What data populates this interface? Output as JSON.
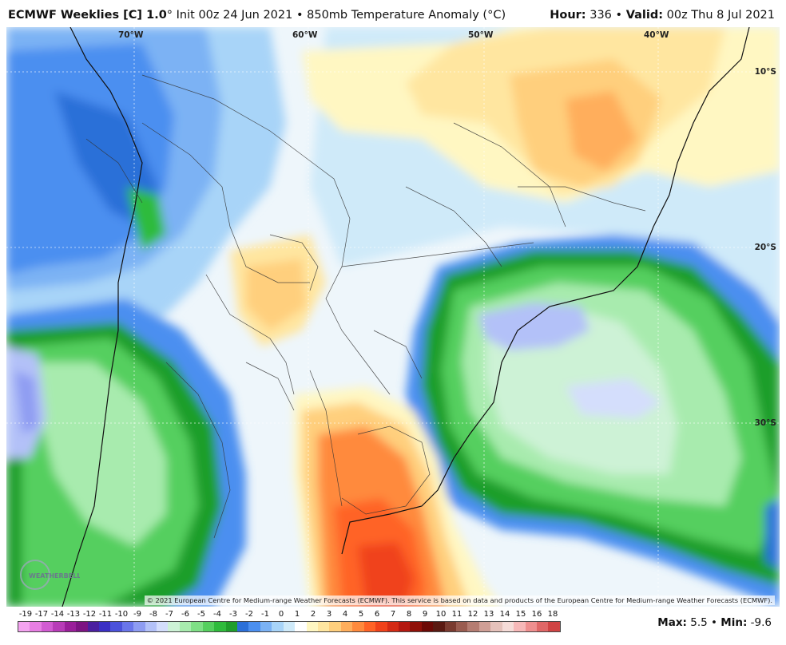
{
  "header": {
    "model": "ECMWF Weeklies [C] 1.0",
    "degree_sign": "°",
    "init_text": "Init 00z 24 Jun 2021",
    "bullet": "•",
    "product": "850mb Temperature Anomaly (°C)",
    "hour_label": "Hour:",
    "hour_value": "336",
    "valid_label": "Valid:",
    "valid_value": "00z Thu 8 Jul 2021"
  },
  "map": {
    "lon_labels": [
      "70°W",
      "60°W",
      "50°W",
      "40°W"
    ],
    "lat_labels": [
      "10°S",
      "20°S",
      "30°S"
    ],
    "copyright": "© 2021 European Centre for Medium-range Weather Forecasts (ECMWF). This service is based on data and products of the European Centre for Medium-range Weather Forecasts (ECMWF).",
    "logo_text": "WEATHERBELL"
  },
  "legend": {
    "ticks": [
      "-19",
      "-17",
      "-14",
      "-13",
      "-12",
      "-11",
      "-10",
      "-9",
      "-8",
      "-7",
      "-6",
      "-5",
      "-4",
      "-3",
      "-2",
      "-1",
      "0",
      "1",
      "2",
      "3",
      "4",
      "5",
      "6",
      "7",
      "8",
      "9",
      "10",
      "11",
      "12",
      "13",
      "14",
      "15",
      "16",
      "18"
    ],
    "colors": [
      "#f4a3f0",
      "#e77ee3",
      "#d25bd2",
      "#b83cb8",
      "#9a1f9a",
      "#7d1483",
      "#4b1fa0",
      "#3a2fc4",
      "#4b52db",
      "#6a76ea",
      "#8e9cf2",
      "#b3c1f8",
      "#d4defc",
      "#cdf2d6",
      "#a8ebae",
      "#7fdf86",
      "#55cf5e",
      "#2fbb3c",
      "#1f9e2b",
      "#2b6fd8",
      "#4b8ff0",
      "#7bb2f4",
      "#a8d4f8",
      "#cfeaf9",
      "#ffffff",
      "#fff7c2",
      "#ffe6a0",
      "#ffcf7d",
      "#ffae5c",
      "#ff8a3d",
      "#ff6326",
      "#f0421a",
      "#d42a14",
      "#b41810",
      "#901008",
      "#6c0a06",
      "#5a1a12",
      "#7a3b30",
      "#9a5c50",
      "#b57d72",
      "#cf9f96",
      "#e6c2bb",
      "#f6dcd8",
      "#f7b8b8",
      "#ef8f8f",
      "#e06767",
      "#d04444"
    ],
    "max_label": "Max:",
    "max_value": "5.5",
    "min_label": "Min:",
    "min_value": "-9.6"
  }
}
